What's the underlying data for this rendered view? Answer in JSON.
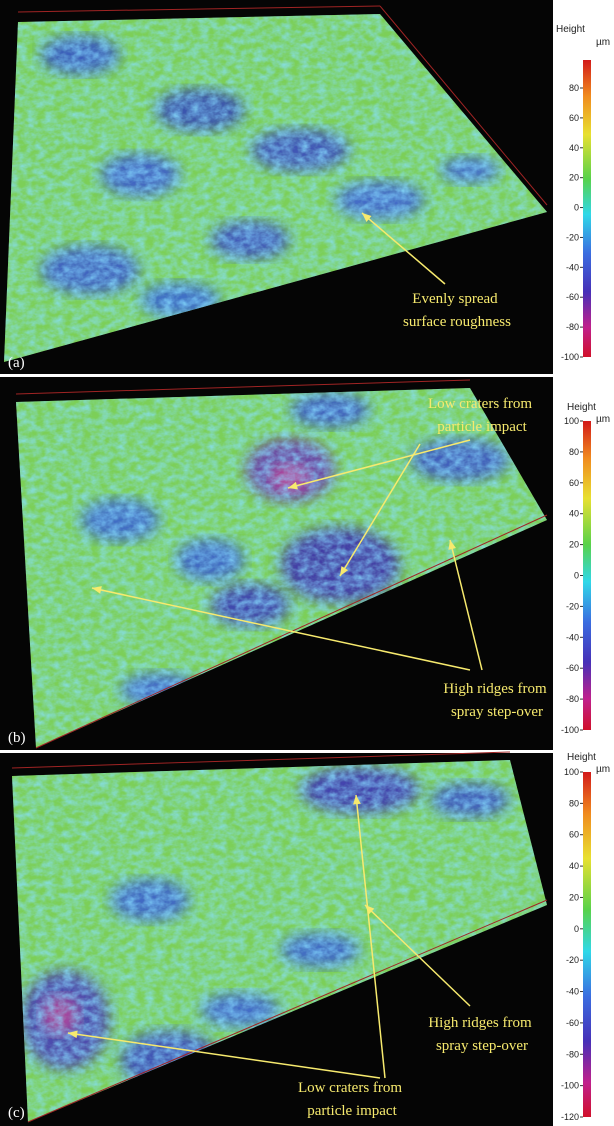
{
  "panels": [
    {
      "label": "(a)",
      "legend": {
        "title": "Height",
        "unit": "µm",
        "ticks": [
          80,
          60,
          40,
          20,
          0,
          -20,
          -40,
          -60,
          -80,
          -100
        ]
      },
      "annotations": [
        {
          "lines": [
            "Evenly spread",
            "surface roughness"
          ]
        }
      ]
    },
    {
      "label": "(b)",
      "legend": {
        "title": "Height",
        "unit": "µm",
        "ticks": [
          100,
          80,
          60,
          40,
          20,
          0,
          -20,
          -40,
          -60,
          -80,
          -100
        ]
      },
      "annotations": [
        {
          "lines": [
            "Low craters from",
            "particle impact"
          ]
        },
        {
          "lines": [
            "High ridges from",
            "spray step-over"
          ]
        }
      ]
    },
    {
      "label": "(c)",
      "legend": {
        "title": "Height",
        "unit": "µm",
        "ticks": [
          100,
          80,
          60,
          40,
          20,
          0,
          -20,
          -40,
          -60,
          -80,
          -100,
          -120
        ]
      },
      "annotations": [
        {
          "lines": [
            "High ridges from",
            "spray step-over"
          ]
        },
        {
          "lines": [
            "Low craters from",
            "particle impact"
          ]
        }
      ]
    }
  ]
}
